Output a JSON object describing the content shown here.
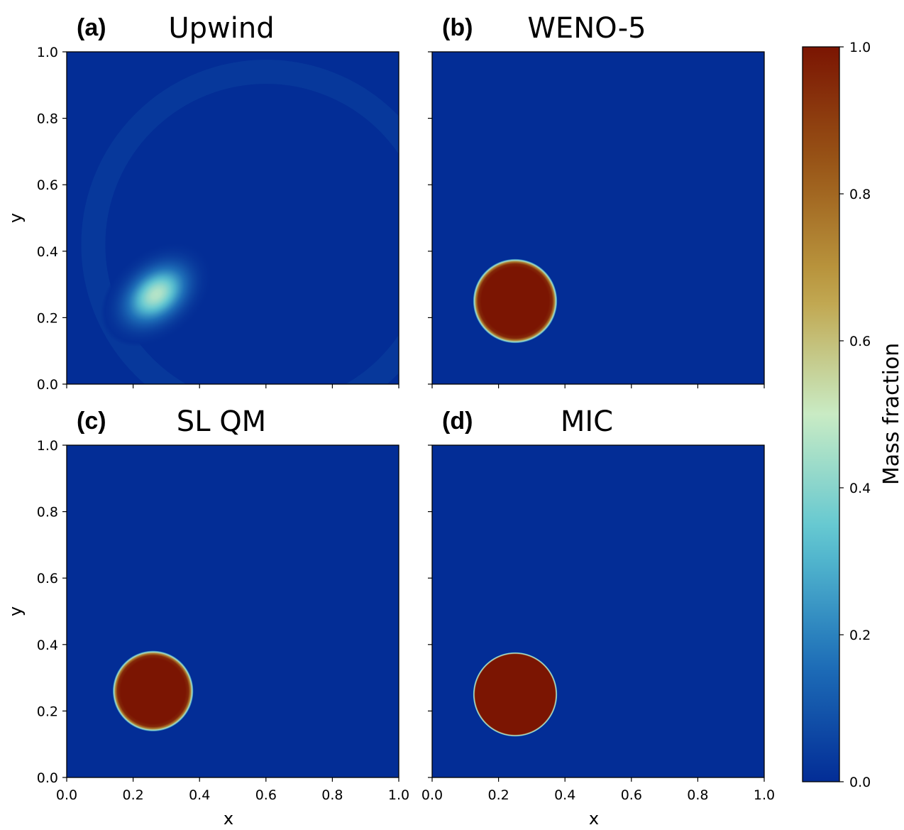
{
  "chart_data": {
    "type": "heatmap",
    "colorbar": {
      "label": "Mass fraction",
      "range": [
        0.0,
        1.0
      ],
      "ticks": [
        "0.0",
        "0.2",
        "0.4",
        "0.6",
        "0.8",
        "1.0"
      ],
      "colormap": [
        "#032d96",
        "#1f71b9",
        "#5cc5d2",
        "#c9ebc4",
        "#c0a145",
        "#9a5918",
        "#7b1502"
      ]
    },
    "xlim": [
      0.0,
      1.0
    ],
    "ylim": [
      0.0,
      1.0
    ],
    "xticks": [
      "0.0",
      "0.2",
      "0.4",
      "0.6",
      "0.8",
      "1.0"
    ],
    "yticks": [
      "0.0",
      "0.2",
      "0.4",
      "0.6",
      "0.8",
      "1.0"
    ],
    "xlabel": "x",
    "ylabel": "y",
    "panels": [
      {
        "letter": "(a)",
        "title": "Upwind",
        "blob": {
          "cx": 0.27,
          "cy": 0.27,
          "rx": 0.19,
          "ry": 0.13,
          "rotation_deg": 40,
          "peak": 0.47,
          "profile": "diffuse"
        }
      },
      {
        "letter": "(b)",
        "title": "WENO-5",
        "blob": {
          "cx": 0.25,
          "cy": 0.25,
          "r": 0.12,
          "peak": 1.0,
          "profile": "smooth-edge"
        }
      },
      {
        "letter": "(c)",
        "title": "SL QM",
        "blob": {
          "cx": 0.26,
          "cy": 0.26,
          "r": 0.115,
          "peak": 1.0,
          "profile": "smooth-edge"
        }
      },
      {
        "letter": "(d)",
        "title": "MIC",
        "blob": {
          "cx": 0.25,
          "cy": 0.25,
          "r": 0.12,
          "peak": 1.0,
          "profile": "sharp-edge"
        }
      }
    ]
  }
}
